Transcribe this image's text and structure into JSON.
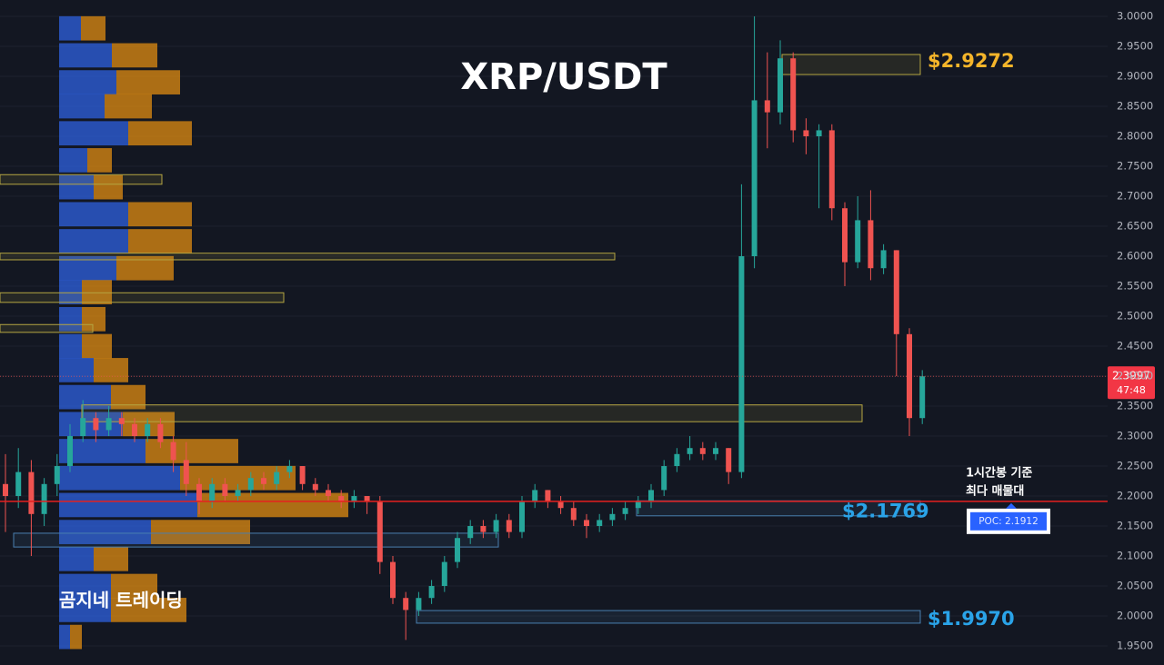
{
  "chart_data": {
    "type": "candlestick",
    "title": "XRP/USDT",
    "watermark": "곰지네 트레이딩",
    "up_color": "#26a69a",
    "down_color": "#ef5350",
    "open": [
      2.22,
      2.2,
      2.24,
      2.17,
      2.22,
      2.25,
      2.3,
      2.33,
      2.31,
      2.33,
      2.32,
      2.3,
      2.32,
      2.29,
      2.26,
      2.22,
      2.19,
      2.22,
      2.2,
      2.21,
      2.23,
      2.22,
      2.24,
      2.25,
      2.22,
      2.21,
      2.2,
      2.19,
      2.2,
      2.19,
      2.09,
      2.03,
      2.01,
      2.03,
      2.05,
      2.09,
      2.13,
      2.15,
      2.14,
      2.16,
      2.14,
      2.19,
      2.21,
      2.19,
      2.18,
      2.16,
      2.15,
      2.16,
      2.17,
      2.18,
      2.19,
      2.21,
      2.25,
      2.27,
      2.28,
      2.27,
      2.28,
      2.24,
      2.6,
      2.86,
      2.84,
      2.93,
      2.81,
      2.8,
      2.81,
      2.68,
      2.59,
      2.66,
      2.58,
      2.61,
      2.47,
      2.33
    ],
    "high": [
      2.27,
      2.28,
      2.26,
      2.23,
      2.27,
      2.32,
      2.36,
      2.34,
      2.35,
      2.34,
      2.33,
      2.33,
      2.33,
      2.3,
      2.29,
      2.23,
      2.23,
      2.23,
      2.22,
      2.24,
      2.24,
      2.25,
      2.26,
      2.25,
      2.23,
      2.22,
      2.21,
      2.21,
      2.2,
      2.2,
      2.1,
      2.04,
      2.04,
      2.06,
      2.1,
      2.14,
      2.16,
      2.16,
      2.17,
      2.17,
      2.2,
      2.22,
      2.21,
      2.2,
      2.19,
      2.17,
      2.17,
      2.18,
      2.19,
      2.2,
      2.22,
      2.26,
      2.28,
      2.3,
      2.29,
      2.29,
      2.28,
      2.72,
      3.0,
      2.94,
      2.96,
      2.94,
      2.83,
      2.82,
      2.82,
      2.69,
      2.7,
      2.71,
      2.62,
      2.61,
      2.48,
      2.41
    ],
    "low": [
      2.14,
      2.18,
      2.1,
      2.15,
      2.2,
      2.24,
      2.29,
      2.29,
      2.3,
      2.3,
      2.29,
      2.29,
      2.28,
      2.24,
      2.2,
      2.17,
      2.18,
      2.19,
      2.19,
      2.2,
      2.21,
      2.21,
      2.23,
      2.21,
      2.2,
      2.19,
      2.18,
      2.18,
      2.17,
      2.07,
      2.02,
      1.96,
      2.0,
      2.02,
      2.04,
      2.08,
      2.12,
      2.13,
      2.13,
      2.13,
      2.13,
      2.18,
      2.18,
      2.17,
      2.15,
      2.13,
      2.14,
      2.15,
      2.16,
      2.17,
      2.18,
      2.2,
      2.24,
      2.26,
      2.26,
      2.26,
      2.22,
      2.23,
      2.58,
      2.78,
      2.82,
      2.79,
      2.77,
      2.68,
      2.66,
      2.55,
      2.58,
      2.56,
      2.57,
      2.4,
      2.3,
      2.32
    ],
    "close": [
      2.2,
      2.24,
      2.17,
      2.22,
      2.25,
      2.3,
      2.33,
      2.31,
      2.33,
      2.32,
      2.3,
      2.32,
      2.29,
      2.26,
      2.22,
      2.19,
      2.22,
      2.2,
      2.21,
      2.23,
      2.22,
      2.24,
      2.25,
      2.22,
      2.21,
      2.2,
      2.19,
      2.2,
      2.19,
      2.09,
      2.03,
      2.01,
      2.03,
      2.05,
      2.09,
      2.13,
      2.15,
      2.14,
      2.16,
      2.14,
      2.19,
      2.21,
      2.19,
      2.18,
      2.16,
      2.15,
      2.16,
      2.17,
      2.18,
      2.19,
      2.21,
      2.25,
      2.27,
      2.28,
      2.27,
      2.28,
      2.24,
      2.6,
      2.86,
      2.84,
      2.93,
      2.81,
      2.8,
      2.81,
      2.68,
      2.59,
      2.66,
      2.58,
      2.61,
      2.47,
      2.33,
      2.3997
    ],
    "ylim": [
      1.9182,
      3.0273
    ],
    "yticks": [
      {
        "value": 3.0,
        "label": "3.0000"
      },
      {
        "value": 2.95,
        "label": "2.9500"
      },
      {
        "value": 2.9,
        "label": "2.9000"
      },
      {
        "value": 2.85,
        "label": "2.8500"
      },
      {
        "value": 2.8,
        "label": "2.8000"
      },
      {
        "value": 2.75,
        "label": "2.7500"
      },
      {
        "value": 2.7,
        "label": "2.7000"
      },
      {
        "value": 2.65,
        "label": "2.6500"
      },
      {
        "value": 2.6,
        "label": "2.6000"
      },
      {
        "value": 2.55,
        "label": "2.5500"
      },
      {
        "value": 2.5,
        "label": "2.5000"
      },
      {
        "value": 2.45,
        "label": "2.4500"
      },
      {
        "value": 2.4,
        "label": "2.4000"
      },
      {
        "value": 2.35,
        "label": "2.3500"
      },
      {
        "value": 2.3,
        "label": "2.3000"
      },
      {
        "value": 2.25,
        "label": "2.2500"
      },
      {
        "value": 2.2,
        "label": "2.2000"
      },
      {
        "value": 2.15,
        "label": "2.1500"
      },
      {
        "value": 2.1,
        "label": "2.1000"
      },
      {
        "value": 2.05,
        "label": "2.0500"
      },
      {
        "value": 2.0,
        "label": "2.0000"
      },
      {
        "value": 1.95,
        "label": "1.9500"
      }
    ],
    "grid": true,
    "last_price": 2.3997,
    "countdown": "47:48",
    "levels": [
      {
        "value": 2.9272,
        "label": "$2.9272",
        "color": "#f5b52a"
      },
      {
        "value": 2.1769,
        "label": "$2.1769",
        "color": "#2aa3e8"
      },
      {
        "value": 1.997,
        "label": "$1.9970",
        "color": "#2aa3e8"
      }
    ],
    "poc": {
      "value": 2.1912,
      "label": "POC: 2.1912",
      "color": "#e5201f"
    },
    "annotation": [
      "1시간봉 기준",
      "최다 매물대"
    ],
    "zones": [
      {
        "top": 2.9364,
        "bottom": 2.903,
        "color": "#b5a642"
      },
      {
        "top": 2.736,
        "bottom": 2.72,
        "color": "#b5a642"
      },
      {
        "top": 2.605,
        "bottom": 2.594,
        "color": "#b5a642"
      },
      {
        "top": 2.539,
        "bottom": 2.523,
        "color": "#b5a642"
      },
      {
        "top": 2.486,
        "bottom": 2.473,
        "color": "#b5a642"
      },
      {
        "top": 2.352,
        "bottom": 2.324,
        "color": "#b5a642"
      },
      {
        "top": 2.192,
        "bottom": 2.167,
        "color": "#4a7fb0"
      },
      {
        "top": 2.138,
        "bottom": 2.115,
        "color": "#4a7fb0"
      },
      {
        "top": 2.009,
        "bottom": 1.988,
        "color": "#4a7fb0"
      }
    ],
    "volume_profile": {
      "prices": [
        2.98,
        2.935,
        2.89,
        2.85,
        2.805,
        2.76,
        2.715,
        2.67,
        2.625,
        2.58,
        2.54,
        2.495,
        2.45,
        2.41,
        2.365,
        2.32,
        2.275,
        2.23,
        2.185,
        2.14,
        2.095,
        2.05,
        2.01,
        1.965
      ],
      "buy": [
        24,
        58,
        63,
        50,
        76,
        31,
        38,
        76,
        76,
        63,
        25,
        25,
        25,
        38,
        57,
        70,
        95,
        133,
        152,
        101,
        38,
        57,
        57,
        12
      ],
      "sell": [
        27,
        50,
        70,
        52,
        70,
        27,
        32,
        70,
        70,
        63,
        33,
        26,
        33,
        38,
        38,
        57,
        102,
        127,
        166,
        109,
        38,
        51,
        83,
        13
      ],
      "buy_color": "#2f62e0",
      "sell_color": "#e08c12"
    }
  }
}
